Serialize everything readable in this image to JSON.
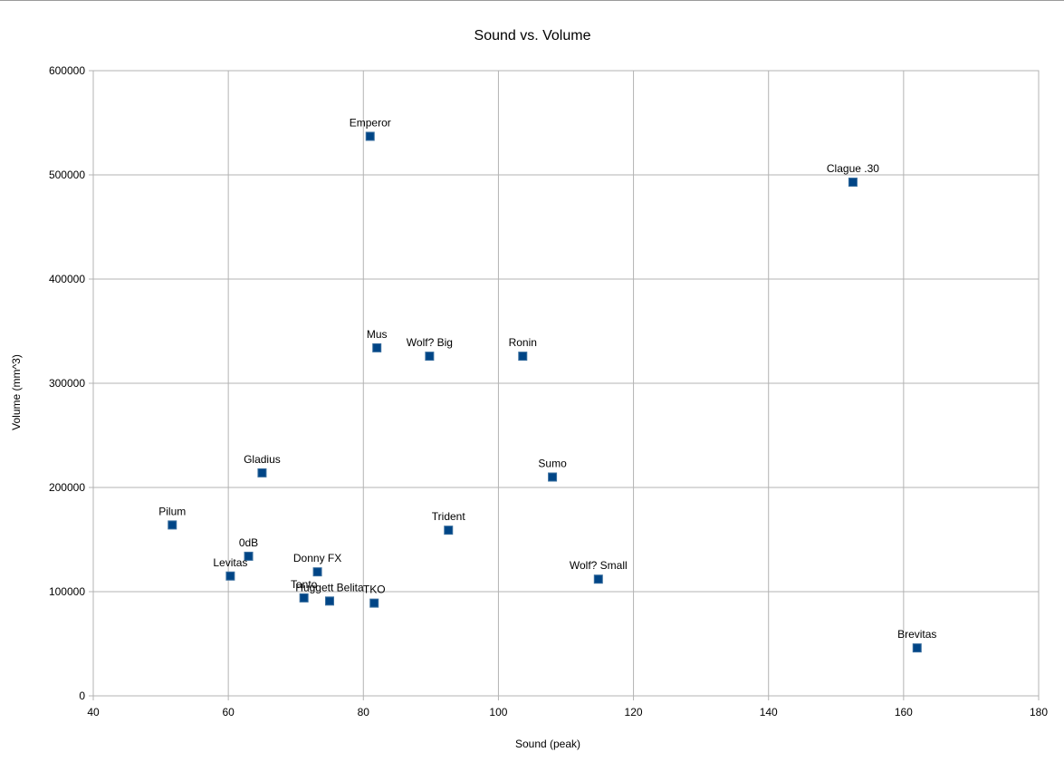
{
  "chart_data": {
    "type": "scatter",
    "title": "Sound vs. Volume",
    "xlabel": "Sound (peak)",
    "ylabel": "Volume (mm^3)",
    "xlim": [
      40,
      180
    ],
    "ylim": [
      0,
      600000
    ],
    "xticks": [
      40,
      60,
      80,
      100,
      120,
      140,
      160,
      180
    ],
    "yticks": [
      0,
      100000,
      200000,
      300000,
      400000,
      500000,
      600000
    ],
    "grid": true,
    "legend": "none",
    "marker_color": "#004586",
    "points": [
      {
        "label": "Emperor",
        "x": 81,
        "y": 537000
      },
      {
        "label": "Clague .30",
        "x": 152.5,
        "y": 493000
      },
      {
        "label": "Mus",
        "x": 82,
        "y": 334000
      },
      {
        "label": "Wolf? Big",
        "x": 89.8,
        "y": 326000
      },
      {
        "label": "Ronin",
        "x": 103.6,
        "y": 326000
      },
      {
        "label": "Gladius",
        "x": 65,
        "y": 214000
      },
      {
        "label": "Sumo",
        "x": 108,
        "y": 210000
      },
      {
        "label": "Pilum",
        "x": 51.7,
        "y": 164000
      },
      {
        "label": "Trident",
        "x": 92.6,
        "y": 159000
      },
      {
        "label": "0dB",
        "x": 63,
        "y": 134000
      },
      {
        "label": "Levitas",
        "x": 60.3,
        "y": 115000
      },
      {
        "label": "Donny FX",
        "x": 73.2,
        "y": 119000
      },
      {
        "label": "Wolf? Small",
        "x": 114.8,
        "y": 112000
      },
      {
        "label": "Tanto",
        "x": 71.2,
        "y": 94000
      },
      {
        "label": "Huggett Belita",
        "x": 75,
        "y": 91000
      },
      {
        "label": "TKO",
        "x": 81.6,
        "y": 89000
      },
      {
        "label": "Brevitas",
        "x": 162,
        "y": 46000
      }
    ]
  }
}
